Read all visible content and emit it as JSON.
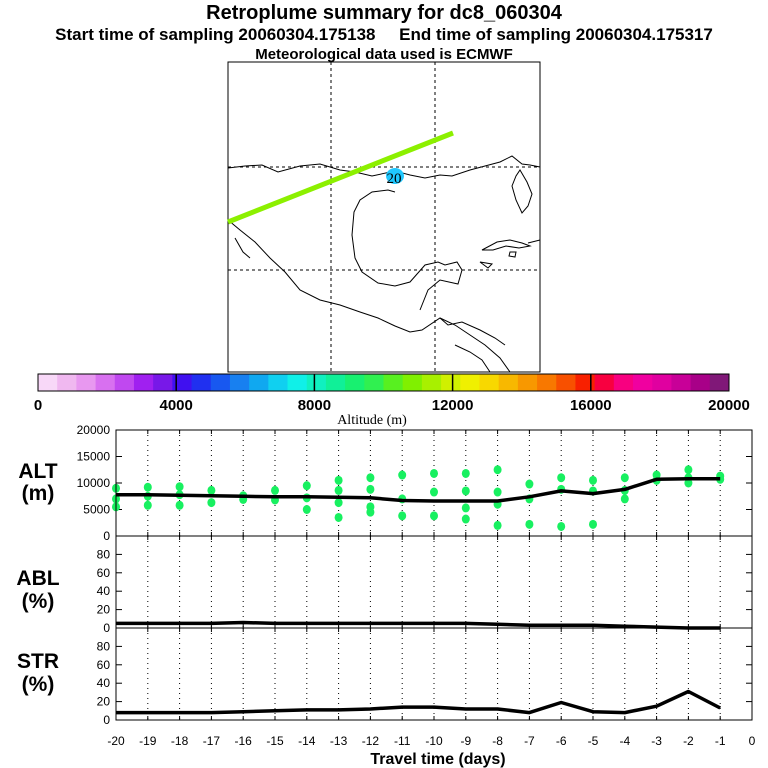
{
  "header": {
    "title": "Retroplume summary for dc8_060304",
    "start_label": "Start time of sampling 20060304.175138",
    "end_label": "End time of sampling 20060304.175317",
    "met_label": "Meteorological data used is ECMWF"
  },
  "map": {
    "marker_label": "20",
    "track_color": "#8cf000",
    "marker_color": "#20c8ff"
  },
  "colorbar": {
    "title": "Altitude (m)",
    "ticks": [
      "0",
      "4000",
      "8000",
      "12000",
      "16000",
      "20000"
    ],
    "colors": [
      "#f8d8f8",
      "#f0b8f0",
      "#e898f0",
      "#d870f0",
      "#c048f0",
      "#a020f0",
      "#7818e8",
      "#4010f0",
      "#2030f0",
      "#1858f0",
      "#1880f0",
      "#10a8f0",
      "#10d0f0",
      "#10f0e8",
      "#10f0c0",
      "#10f098",
      "#18f070",
      "#30f050",
      "#58f020",
      "#80f000",
      "#a8f000",
      "#d0f000",
      "#f0f000",
      "#f8d800",
      "#f8b800",
      "#f89800",
      "#f87800",
      "#f85000",
      "#f82000",
      "#f80040",
      "#f80080",
      "#f000a0",
      "#e000a0",
      "#c80098",
      "#a80088",
      "#801878"
    ]
  },
  "chart_data": [
    {
      "type": "line",
      "panel": "ALT",
      "ylabel_line1": "ALT",
      "ylabel_line2": "(m)",
      "ylim": [
        0,
        20000
      ],
      "yticks": [
        "0",
        "5000",
        "10000",
        "15000",
        "20000"
      ],
      "x": [
        -20,
        -19,
        -18,
        -17,
        -16,
        -15,
        -14,
        -13,
        -12,
        -11,
        -10,
        -9,
        -8,
        -7,
        -6,
        -5,
        -4,
        -3,
        -2,
        -1
      ],
      "values": [
        7800,
        7800,
        7700,
        7600,
        7500,
        7400,
        7400,
        7300,
        7200,
        6700,
        6600,
        6600,
        6600,
        7400,
        8500,
        8000,
        8800,
        10700,
        10800,
        10800
      ],
      "scatter": [
        {
          "x": -20,
          "y": 9000
        },
        {
          "x": -20,
          "y": 7000
        },
        {
          "x": -20,
          "y": 5500
        },
        {
          "x": -19,
          "y": 9200
        },
        {
          "x": -19,
          "y": 7500
        },
        {
          "x": -19,
          "y": 5800
        },
        {
          "x": -18,
          "y": 9300
        },
        {
          "x": -18,
          "y": 7800
        },
        {
          "x": -18,
          "y": 5800
        },
        {
          "x": -17,
          "y": 8600
        },
        {
          "x": -17,
          "y": 6300
        },
        {
          "x": -16,
          "y": 7600
        },
        {
          "x": -16,
          "y": 6900
        },
        {
          "x": -15,
          "y": 8600
        },
        {
          "x": -15,
          "y": 6800
        },
        {
          "x": -14,
          "y": 9500
        },
        {
          "x": -14,
          "y": 7200
        },
        {
          "x": -14,
          "y": 5000
        },
        {
          "x": -13,
          "y": 10500
        },
        {
          "x": -13,
          "y": 8600
        },
        {
          "x": -13,
          "y": 6300
        },
        {
          "x": -13,
          "y": 3500
        },
        {
          "x": -12,
          "y": 11000
        },
        {
          "x": -12,
          "y": 8800
        },
        {
          "x": -12,
          "y": 5500
        },
        {
          "x": -12,
          "y": 4500
        },
        {
          "x": -11,
          "y": 11500
        },
        {
          "x": -11,
          "y": 7000
        },
        {
          "x": -11,
          "y": 3800
        },
        {
          "x": -10,
          "y": 11800
        },
        {
          "x": -10,
          "y": 8300
        },
        {
          "x": -10,
          "y": 3800
        },
        {
          "x": -9,
          "y": 11800
        },
        {
          "x": -9,
          "y": 8500
        },
        {
          "x": -9,
          "y": 5300
        },
        {
          "x": -9,
          "y": 3200
        },
        {
          "x": -8,
          "y": 12500
        },
        {
          "x": -8,
          "y": 8300
        },
        {
          "x": -8,
          "y": 6000
        },
        {
          "x": -8,
          "y": 2000
        },
        {
          "x": -7,
          "y": 9800
        },
        {
          "x": -7,
          "y": 7000
        },
        {
          "x": -7,
          "y": 2200
        },
        {
          "x": -6,
          "y": 11000
        },
        {
          "x": -6,
          "y": 8800
        },
        {
          "x": -6,
          "y": 1800
        },
        {
          "x": -5,
          "y": 10500
        },
        {
          "x": -5,
          "y": 8500
        },
        {
          "x": -5,
          "y": 2200
        },
        {
          "x": -4,
          "y": 11000
        },
        {
          "x": -4,
          "y": 8600
        },
        {
          "x": -4,
          "y": 7000
        },
        {
          "x": -3,
          "y": 11500
        },
        {
          "x": -3,
          "y": 10500
        },
        {
          "x": -2,
          "y": 12500
        },
        {
          "x": -2,
          "y": 11000
        },
        {
          "x": -2,
          "y": 10000
        },
        {
          "x": -1,
          "y": 11300
        },
        {
          "x": -1,
          "y": 10700
        }
      ]
    },
    {
      "type": "line",
      "panel": "ABL",
      "ylabel_line1": "ABL",
      "ylabel_line2": "(%)",
      "ylim": [
        0,
        100
      ],
      "yticks": [
        "0",
        "20",
        "40",
        "60",
        "80"
      ],
      "x": [
        -20,
        -19,
        -18,
        -17,
        -16,
        -15,
        -14,
        -13,
        -12,
        -11,
        -10,
        -9,
        -8,
        -7,
        -6,
        -5,
        -4,
        -3,
        -2,
        -1
      ],
      "values": [
        5,
        5,
        5,
        5,
        6,
        5,
        5,
        5,
        5,
        5,
        5,
        5,
        4,
        3,
        3,
        3,
        2,
        1,
        0,
        0
      ]
    },
    {
      "type": "line",
      "panel": "STR",
      "ylabel_line1": "STR",
      "ylabel_line2": "(%)",
      "ylim": [
        0,
        100
      ],
      "yticks": [
        "0",
        "20",
        "40",
        "60",
        "80"
      ],
      "x": [
        -20,
        -19,
        -18,
        -17,
        -16,
        -15,
        -14,
        -13,
        -12,
        -11,
        -10,
        -9,
        -8,
        -7,
        -6,
        -5,
        -4,
        -3,
        -2,
        -1
      ],
      "values": [
        8,
        8,
        8,
        8,
        9,
        10,
        11,
        11,
        12,
        14,
        14,
        12,
        12,
        8,
        19,
        9,
        8,
        15,
        31,
        13
      ]
    }
  ],
  "xaxis": {
    "label": "Travel time (days)",
    "ticks": [
      "-20",
      "-19",
      "-18",
      "-17",
      "-16",
      "-15",
      "-14",
      "-13",
      "-12",
      "-11",
      "-10",
      "-9",
      "-8",
      "-7",
      "-6",
      "-5",
      "-4",
      "-3",
      "-2",
      "-1",
      "0"
    ]
  }
}
